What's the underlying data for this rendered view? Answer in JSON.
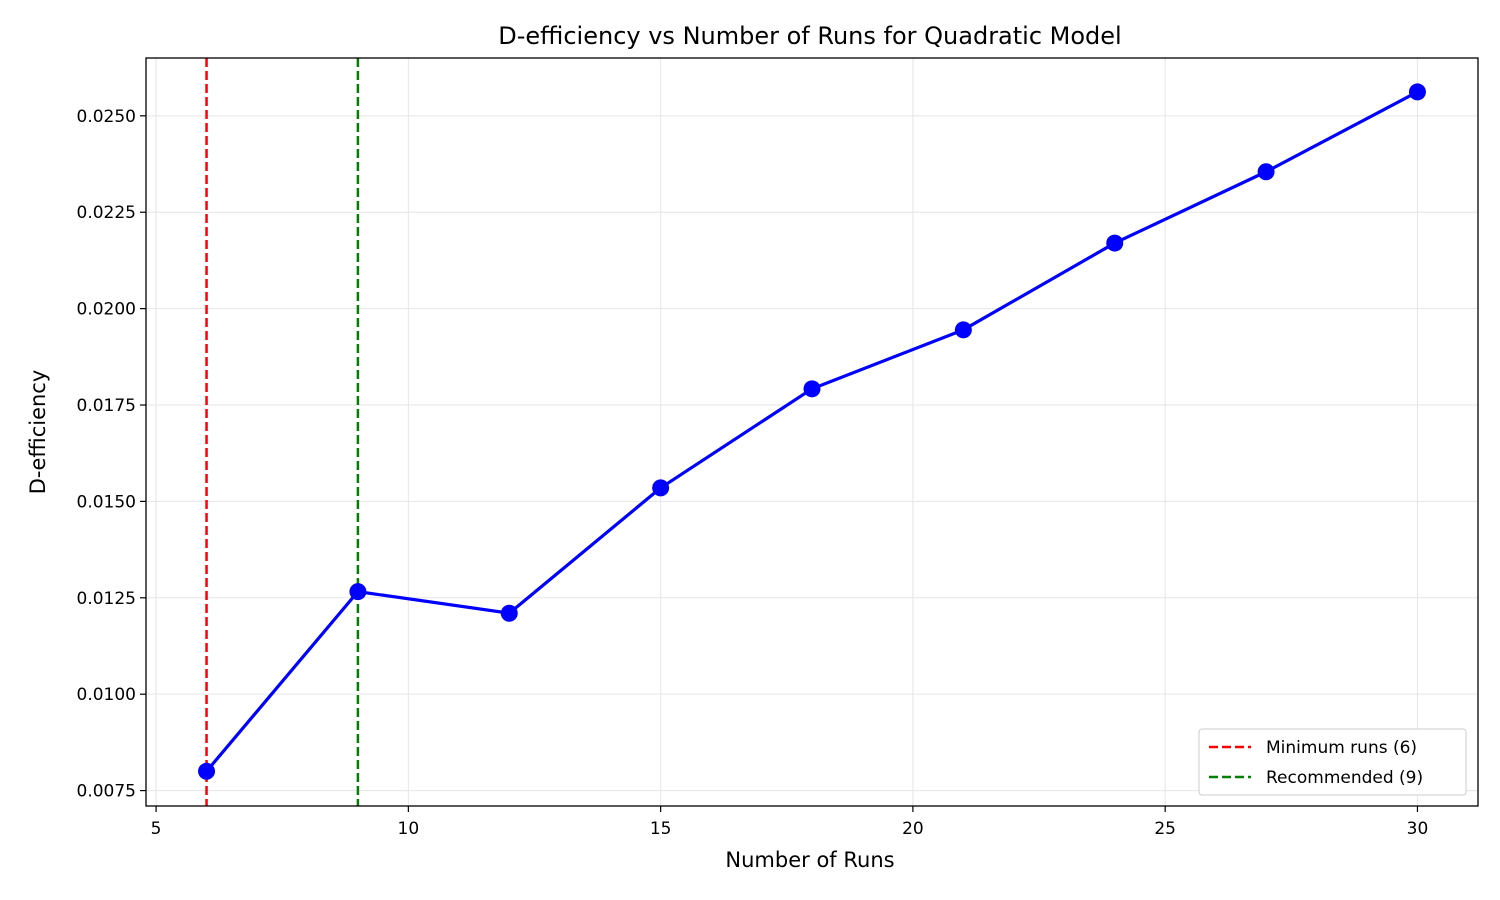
{
  "chart_data": {
    "type": "line",
    "title": "D-efficiency vs Number of Runs for Quadratic Model",
    "xlabel": "Number of Runs",
    "ylabel": "D-efficiency",
    "xlim": [
      4.8,
      31.2
    ],
    "ylim": [
      0.0071,
      0.0265
    ],
    "xticks": [
      5,
      10,
      15,
      20,
      25,
      30
    ],
    "xtick_labels": [
      "5",
      "10",
      "15",
      "20",
      "25",
      "30"
    ],
    "yticks": [
      0.0075,
      0.01,
      0.0125,
      0.015,
      0.0175,
      0.02,
      0.0225,
      0.025
    ],
    "ytick_labels": [
      "0.0075",
      "0.0100",
      "0.0125",
      "0.0150",
      "0.0175",
      "0.0200",
      "0.0225",
      "0.0250"
    ],
    "grid": true,
    "series": [
      {
        "color": "#0000ff",
        "x": [
          6,
          9,
          12,
          15,
          18,
          21,
          24,
          27,
          30
        ],
        "y": [
          0.008,
          0.01266,
          0.0121,
          0.01535,
          0.01792,
          0.01945,
          0.0217,
          0.02355,
          0.02562
        ]
      }
    ],
    "reference_lines": [
      {
        "x": 6,
        "label": "Minimum runs (6)",
        "color": "#ff0000",
        "style": "dashed"
      },
      {
        "x": 9,
        "label": "Recommended (9)",
        "color": "#008000",
        "style": "dashed"
      }
    ],
    "legend_position": "bottom-right"
  }
}
